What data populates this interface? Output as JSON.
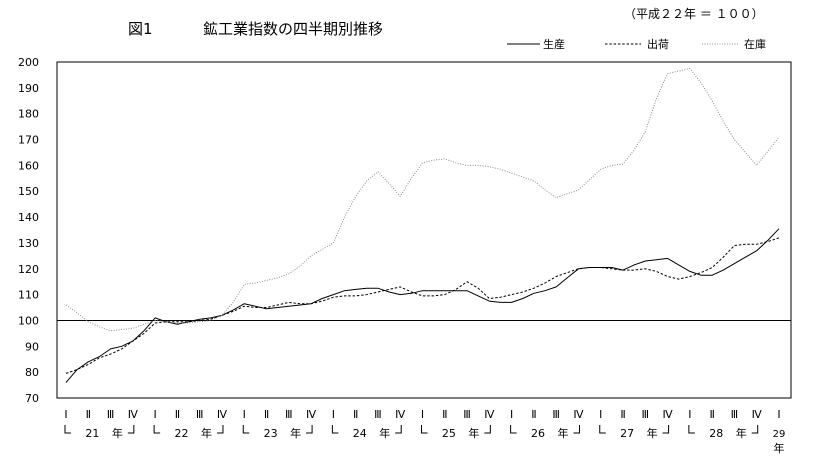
{
  "figure_label": "図1",
  "chart_data": {
    "type": "line",
    "title": "鉱工業指数の四半期別推移",
    "base_note": "（平成２２年 ＝ １００）",
    "xlabel": "",
    "ylabel": "",
    "ylim": [
      70,
      200
    ],
    "yticks": [
      70,
      80,
      90,
      100,
      110,
      120,
      130,
      140,
      150,
      160,
      170,
      180,
      190,
      200
    ],
    "reference_line": 100,
    "grid": false,
    "legend_position": "top-right",
    "quarter_labels": [
      "Ⅰ",
      "Ⅱ",
      "Ⅲ",
      "Ⅳ",
      "Ⅰ",
      "Ⅱ",
      "Ⅲ",
      "Ⅳ",
      "Ⅰ",
      "Ⅱ",
      "Ⅲ",
      "Ⅳ",
      "Ⅰ",
      "Ⅱ",
      "Ⅲ",
      "Ⅳ",
      "Ⅰ",
      "Ⅱ",
      "Ⅲ",
      "Ⅳ",
      "Ⅰ",
      "Ⅱ",
      "Ⅲ",
      "Ⅳ",
      "Ⅰ",
      "Ⅱ",
      "Ⅲ",
      "Ⅳ",
      "Ⅰ",
      "Ⅱ",
      "Ⅲ",
      "Ⅳ",
      "Ⅰ"
    ],
    "year_groups": [
      {
        "label": "21",
        "suffix": "年",
        "start": 0,
        "end": 3
      },
      {
        "label": "22",
        "suffix": "年",
        "start": 4,
        "end": 7
      },
      {
        "label": "23",
        "suffix": "年",
        "start": 8,
        "end": 11
      },
      {
        "label": "24",
        "suffix": "年",
        "start": 12,
        "end": 15
      },
      {
        "label": "25",
        "suffix": "年",
        "start": 16,
        "end": 19
      },
      {
        "label": "26",
        "suffix": "年",
        "start": 20,
        "end": 23
      },
      {
        "label": "27",
        "suffix": "年",
        "start": 24,
        "end": 27
      },
      {
        "label": "28",
        "suffix": "年",
        "start": 28,
        "end": 31
      },
      {
        "label": "29",
        "suffix": "年",
        "start": 32,
        "end": 32
      }
    ],
    "x": [
      0,
      0.5,
      1,
      1.5,
      2,
      2.5,
      3,
      3.5,
      4,
      4.5,
      5,
      5.5,
      6,
      6.5,
      7,
      7.5,
      8,
      8.5,
      9,
      9.5,
      10,
      10.5,
      11,
      11.5,
      12,
      12.5,
      13,
      13.5,
      14,
      14.5,
      15,
      15.5,
      16,
      16.5,
      17,
      17.5,
      18,
      18.5,
      19,
      19.5,
      20,
      20.5,
      21,
      21.5,
      22,
      22.5,
      23,
      23.5,
      24,
      24.5,
      25,
      25.5,
      26,
      26.5,
      27,
      27.5,
      28,
      28.5,
      29,
      29.5,
      30,
      30.5,
      31,
      31.5,
      32
    ],
    "series": [
      {
        "name": "生産",
        "style": "solid",
        "color": "#000000",
        "values": [
          76,
          81,
          84,
          86,
          89,
          90,
          92,
          96,
          101,
          99.5,
          98.5,
          99.5,
          100.5,
          101,
          102,
          104,
          106.5,
          105.5,
          104.5,
          105,
          105.5,
          106,
          106.5,
          108.5,
          110,
          111.5,
          112,
          112.5,
          112.5,
          111,
          110,
          110.5,
          111.5,
          111.5,
          111.5,
          111.5,
          111.5,
          109.5,
          107.5,
          107,
          107,
          108.5,
          110.5,
          111.5,
          113,
          116.5,
          120,
          120.5,
          120.5,
          120.5,
          119.5,
          121.5,
          123,
          123.5,
          124,
          121.5,
          119,
          117.5,
          117.5,
          119.5,
          122,
          124.5,
          127,
          131,
          135.5
        ]
      },
      {
        "name": "出荷",
        "style": "dashed",
        "color": "#000000",
        "values": [
          79.5,
          81,
          83,
          85.5,
          87,
          89,
          92,
          95,
          99,
          99.5,
          99.5,
          99.5,
          100,
          100.5,
          102,
          103.5,
          105.5,
          105,
          105,
          106,
          107,
          106.5,
          106.5,
          107.5,
          109,
          109.5,
          109.5,
          110,
          111,
          112,
          113,
          111,
          109.5,
          109.5,
          110,
          112,
          115,
          112.5,
          108.5,
          109,
          110,
          111,
          112.5,
          114.5,
          117,
          118.5,
          120,
          120.5,
          120.5,
          120,
          119.5,
          119.5,
          120,
          119,
          117,
          116,
          117,
          118.5,
          120.5,
          124.5,
          129,
          129.5,
          129.5,
          130.5,
          132
        ]
      },
      {
        "name": "在庫",
        "style": "dotted",
        "color": "#8c8c8c",
        "values": [
          106,
          103,
          99.5,
          97.5,
          96,
          96.5,
          97,
          98.5,
          100,
          99.5,
          99,
          99,
          99.5,
          100,
          102,
          107,
          114,
          114.5,
          115.5,
          116.5,
          118,
          121,
          125,
          127.5,
          130,
          140,
          148,
          154,
          157.5,
          153,
          148,
          155,
          161,
          162,
          162.5,
          161,
          160,
          160,
          159.5,
          158.5,
          157,
          155.5,
          154,
          150.5,
          147.5,
          149,
          150.5,
          154.5,
          158.5,
          160,
          160.5,
          166,
          173,
          186,
          195.5,
          196.5,
          197.5,
          192,
          185,
          177,
          170,
          165,
          160,
          165.5,
          171
        ]
      }
    ]
  }
}
